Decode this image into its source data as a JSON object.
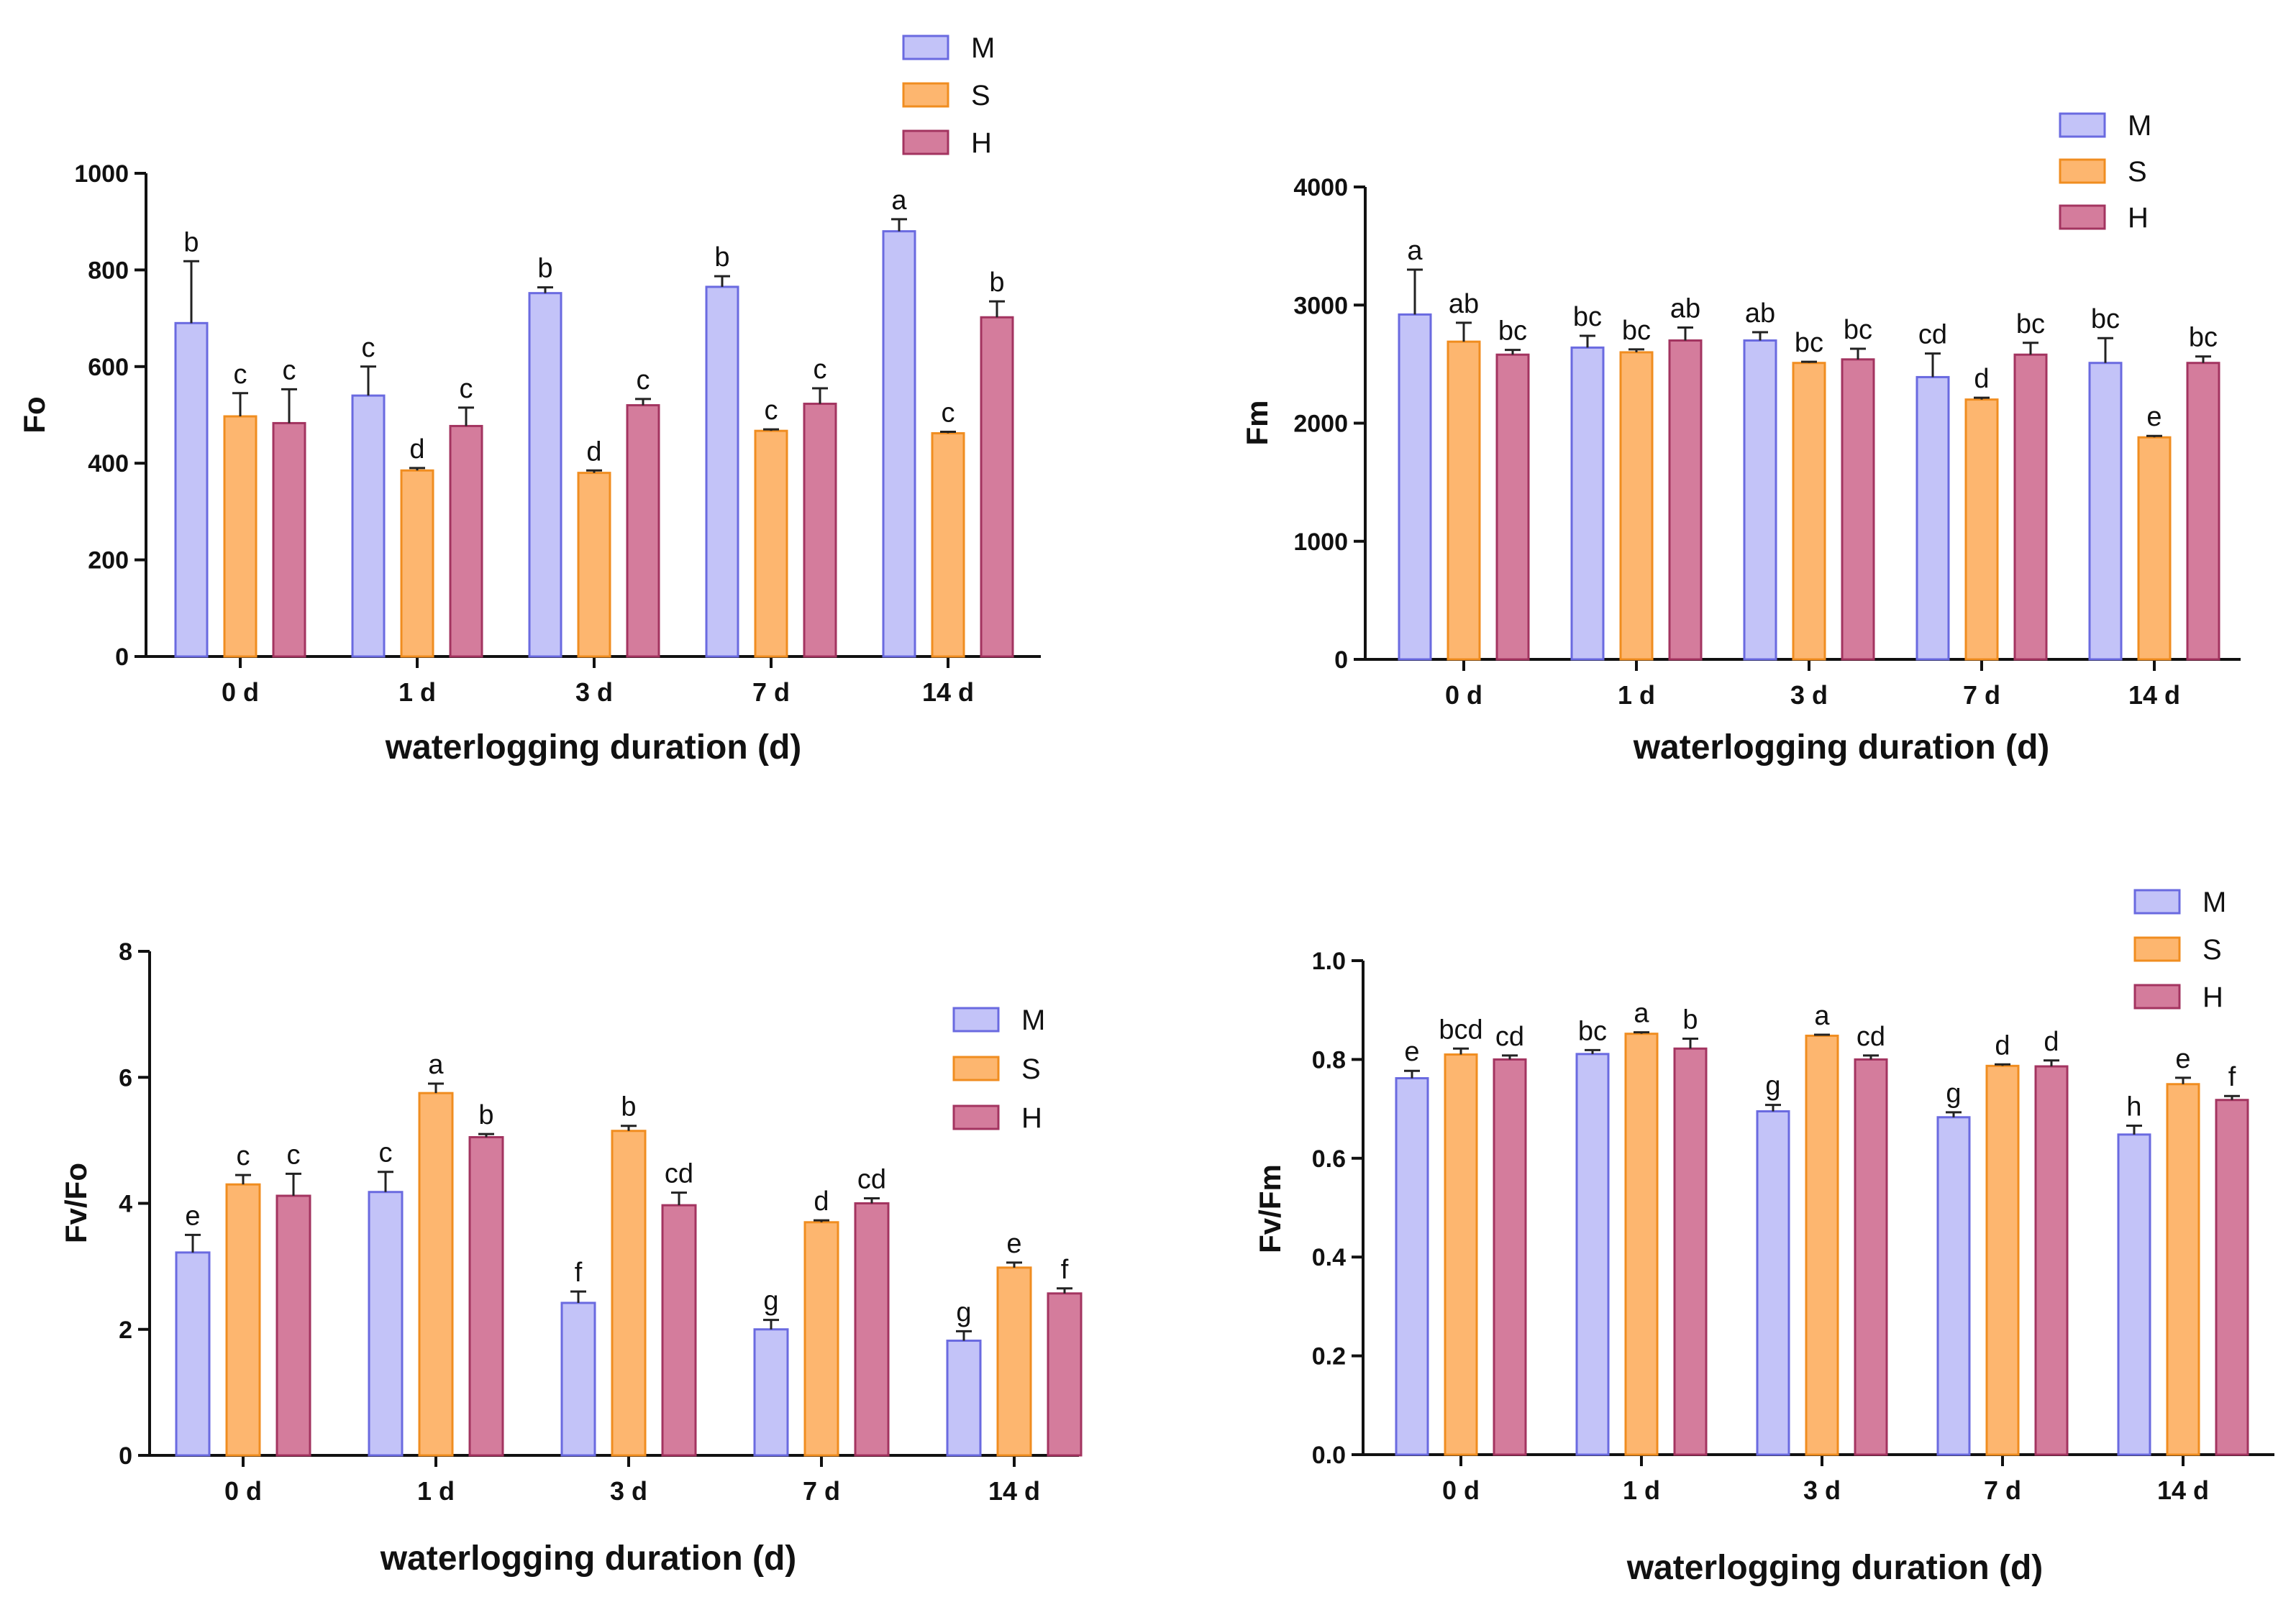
{
  "colors": {
    "M": {
      "fill": "#c3c3f8",
      "stroke": "#6a6ae0"
    },
    "S": {
      "fill": "#fdb66f",
      "stroke": "#f08d20"
    },
    "H": {
      "fill": "#d47c9c",
      "stroke": "#a33460"
    }
  },
  "chart_data": [
    {
      "type": "bar",
      "title": "",
      "xlabel": "waterlogging duration (d)",
      "ylabel": "Fo",
      "ylim": [
        0,
        1000
      ],
      "yticks": [
        0,
        200,
        400,
        600,
        800,
        1000
      ],
      "tick_labels": [
        "0",
        "200",
        "400",
        "600",
        "800",
        "1000"
      ],
      "categories": [
        "0 d",
        "1 d",
        "3 d",
        "7 d",
        "14 d"
      ],
      "legend": {
        "position": "top-right",
        "entries": [
          "M",
          "S",
          "H"
        ]
      },
      "series": [
        {
          "name": "M",
          "values": [
            690,
            540,
            752,
            765,
            880
          ],
          "errors": [
            128,
            60,
            12,
            22,
            25
          ],
          "letters": [
            "b",
            "c",
            "b",
            "b",
            "a"
          ]
        },
        {
          "name": "S",
          "values": [
            497,
            385,
            380,
            467,
            462
          ],
          "errors": [
            48,
            5,
            5,
            3,
            3
          ],
          "letters": [
            "c",
            "d",
            "d",
            "c",
            "c"
          ]
        },
        {
          "name": "H",
          "values": [
            483,
            477,
            520,
            523,
            702
          ],
          "errors": [
            70,
            38,
            13,
            32,
            33
          ],
          "letters": [
            "c",
            "c",
            "c",
            "c",
            "b"
          ]
        }
      ]
    },
    {
      "type": "bar",
      "title": "",
      "xlabel": "waterlogging duration (d)",
      "ylabel": "Fm",
      "ylim": [
        0,
        4000
      ],
      "yticks": [
        0,
        1000,
        2000,
        3000,
        4000
      ],
      "tick_labels": [
        "0",
        "1000",
        "2000",
        "3000",
        "4000"
      ],
      "categories": [
        "0 d",
        "1 d",
        "3 d",
        "7 d",
        "14 d"
      ],
      "legend": {
        "position": "top-right",
        "entries": [
          "M",
          "S",
          "H"
        ]
      },
      "series": [
        {
          "name": "M",
          "values": [
            2920,
            2640,
            2700,
            2390,
            2510
          ],
          "errors": [
            380,
            100,
            70,
            200,
            210
          ],
          "letters": [
            "a",
            "bc",
            "ab",
            "cd",
            "bc"
          ]
        },
        {
          "name": "S",
          "values": [
            2690,
            2600,
            2510,
            2200,
            1880
          ],
          "errors": [
            160,
            25,
            10,
            15,
            12
          ],
          "letters": [
            "ab",
            "bc",
            "bc",
            "d",
            "e"
          ]
        },
        {
          "name": "H",
          "values": [
            2580,
            2700,
            2540,
            2580,
            2510
          ],
          "errors": [
            40,
            110,
            90,
            100,
            55
          ],
          "letters": [
            "bc",
            "ab",
            "bc",
            "bc",
            "bc"
          ]
        }
      ]
    },
    {
      "type": "bar",
      "title": "",
      "xlabel": "waterlogging duration (d)",
      "ylabel": "Fv/Fo",
      "ylim": [
        0,
        8
      ],
      "yticks": [
        0,
        2,
        4,
        6,
        8
      ],
      "tick_labels": [
        "0",
        "2",
        "4",
        "6",
        "8"
      ],
      "categories": [
        "0 d",
        "1 d",
        "3 d",
        "7 d",
        "14 d"
      ],
      "legend": {
        "position": "top-right",
        "entries": [
          "M",
          "S",
          "H"
        ]
      },
      "series": [
        {
          "name": "M",
          "values": [
            3.22,
            4.18,
            2.42,
            2.0,
            1.82
          ],
          "errors": [
            0.28,
            0.32,
            0.18,
            0.15,
            0.15
          ],
          "letters": [
            "e",
            "c",
            "f",
            "g",
            "g"
          ]
        },
        {
          "name": "S",
          "values": [
            4.3,
            5.75,
            5.15,
            3.7,
            2.98
          ],
          "errors": [
            0.15,
            0.15,
            0.08,
            0.03,
            0.08
          ],
          "letters": [
            "c",
            "a",
            "b",
            "d",
            "e"
          ]
        },
        {
          "name": "H",
          "values": [
            4.12,
            5.05,
            3.97,
            4.0,
            2.57
          ],
          "errors": [
            0.35,
            0.05,
            0.2,
            0.08,
            0.08
          ],
          "letters": [
            "c",
            "b",
            "cd",
            "cd",
            "f"
          ]
        }
      ]
    },
    {
      "type": "bar",
      "title": "",
      "xlabel": "waterlogging duration (d)",
      "ylabel": "Fv/Fm",
      "ylim": [
        0,
        1.0
      ],
      "yticks": [
        0,
        0.2,
        0.4,
        0.6,
        0.8,
        1.0
      ],
      "tick_labels": [
        "0.0",
        "0.2",
        "0.4",
        "0.6",
        "0.8",
        "1.0"
      ],
      "categories": [
        "0 d",
        "1 d",
        "3 d",
        "7 d",
        "14 d"
      ],
      "legend": {
        "position": "top-right",
        "entries": [
          "M",
          "S",
          "H"
        ]
      },
      "series": [
        {
          "name": "M",
          "values": [
            0.762,
            0.811,
            0.695,
            0.683,
            0.648
          ],
          "errors": [
            0.015,
            0.008,
            0.013,
            0.01,
            0.018
          ],
          "letters": [
            "e",
            "bc",
            "g",
            "g",
            "h"
          ]
        },
        {
          "name": "S",
          "values": [
            0.81,
            0.852,
            0.848,
            0.787,
            0.75
          ],
          "errors": [
            0.012,
            0.003,
            0.002,
            0.003,
            0.013
          ],
          "letters": [
            "bcd",
            "a",
            "a",
            "d",
            "e"
          ]
        },
        {
          "name": "H",
          "values": [
            0.8,
            0.822,
            0.8,
            0.786,
            0.718
          ],
          "errors": [
            0.008,
            0.02,
            0.008,
            0.012,
            0.008
          ],
          "letters": [
            "cd",
            "b",
            "cd",
            "d",
            "f"
          ]
        }
      ]
    }
  ]
}
